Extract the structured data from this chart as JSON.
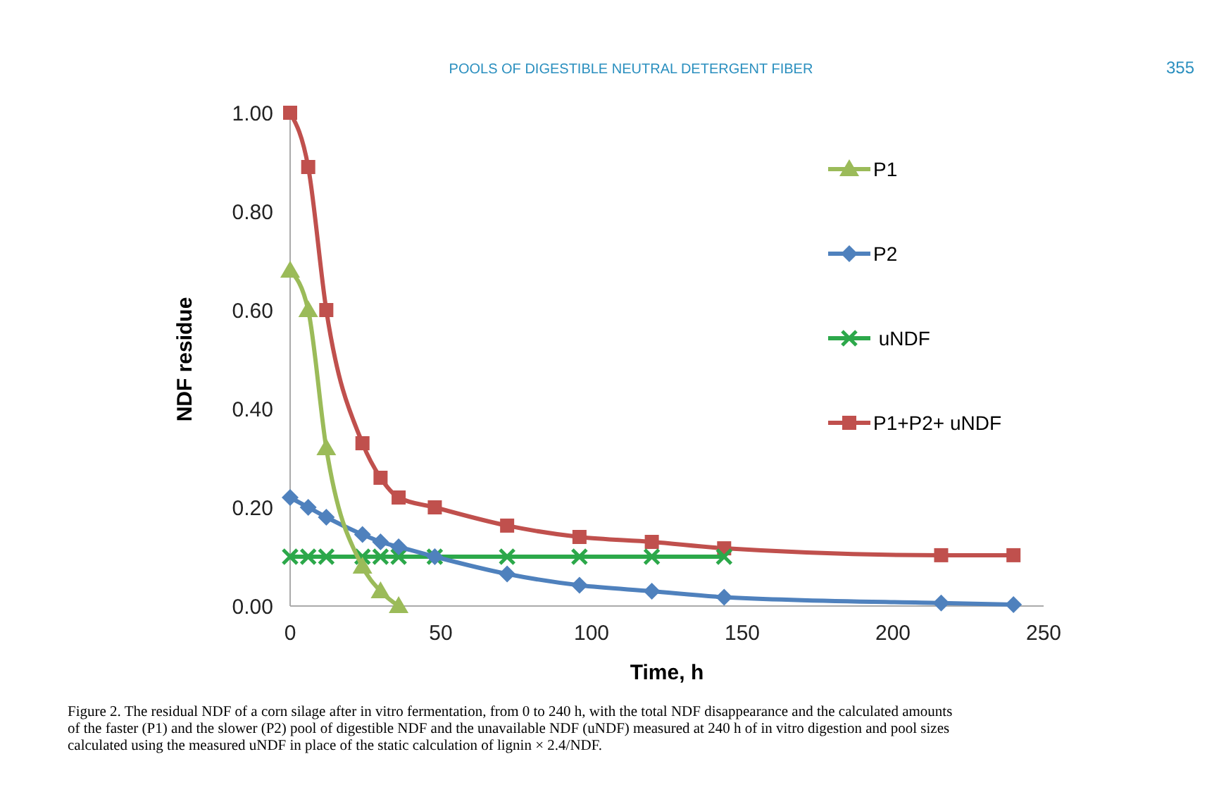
{
  "chart_data": {
    "type": "line",
    "title": "POOLS OF DIGESTIBLE NEUTRAL DETERGENT FIBER",
    "xlabel": "Time, h",
    "ylabel": "NDF residue",
    "annotations": [
      "355",
      "Figure 2. The residual NDF of a corn silage after in vitro fermentation, from 0 to 240 h, with the total NDF disappearance and the calculated amounts of the faster (P1) and the slower (P2) pool of digestible NDF and the unavailable NDF (uNDF) measured at 240 h of in vitro digestion and pool sizes calculated using the measured uNDF in place of the static calculation of lignin × 2.4/NDF."
    ],
    "xlim": [
      0,
      250
    ],
    "xticks": [
      0,
      50,
      100,
      150,
      200,
      250
    ],
    "ylim": [
      0,
      1
    ],
    "yticks": [
      {
        "value": 0,
        "label": "0.00"
      },
      {
        "value": 0.2,
        "label": "0.20"
      },
      {
        "value": 0.4,
        "label": "0.40"
      },
      {
        "value": 0.6,
        "label": "0.60"
      },
      {
        "value": 0.8,
        "label": "0.80"
      },
      {
        "value": 1,
        "label": "1.00"
      }
    ],
    "grid": false,
    "legend": "top right",
    "series": [
      {
        "name": "P1",
        "color": "#9bbb59",
        "marker": "triangle",
        "x": [
          0,
          6,
          12,
          24,
          30,
          36
        ],
        "values": [
          0.68,
          0.6,
          0.32,
          0.08,
          0.03,
          0
        ]
      },
      {
        "name": "P2",
        "color": "#4f81bd",
        "marker": "diamond",
        "x": [
          0,
          6,
          12,
          24,
          30,
          36,
          48,
          72,
          96,
          120,
          144,
          216,
          240
        ],
        "values": [
          0.22,
          0.2,
          0.18,
          0.145,
          0.13,
          0.12,
          0.1,
          0.065,
          0.042,
          0.03,
          0.018,
          0.006,
          0.003
        ]
      },
      {
        "name": " uNDF",
        "color": "#2ca84a",
        "marker": "cross",
        "x": [
          0,
          6,
          12,
          24,
          30,
          36,
          48,
          72,
          96,
          120,
          144
        ],
        "values": [
          0.1,
          0.1,
          0.1,
          0.1,
          0.1,
          0.1,
          0.1,
          0.1,
          0.1,
          0.1,
          0.1
        ]
      },
      {
        "name": "P1+P2+ uNDF",
        "color": "#c0504d",
        "marker": "square",
        "x": [
          0,
          6,
          12,
          24,
          30,
          36,
          48,
          72,
          96,
          120,
          144,
          216,
          240
        ],
        "values": [
          1,
          0.89,
          0.6,
          0.33,
          0.26,
          0.22,
          0.2,
          0.163,
          0.14,
          0.13,
          0.117,
          0.103,
          0.103
        ]
      }
    ]
  }
}
